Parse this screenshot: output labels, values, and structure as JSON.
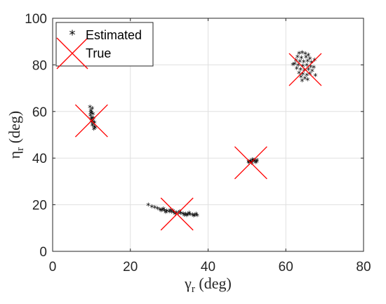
{
  "chart_data": {
    "type": "scatter",
    "xlabel": {
      "symbol": "γ",
      "subscript": "r",
      "unit": " (deg)"
    },
    "ylabel": {
      "symbol": "η",
      "subscript": "r",
      "unit": " (deg)"
    },
    "xlim": [
      0,
      80
    ],
    "ylim": [
      0,
      100
    ],
    "x_ticks": [
      0,
      20,
      40,
      60,
      80
    ],
    "y_ticks": [
      0,
      20,
      40,
      60,
      80,
      100
    ],
    "grid": true,
    "legend": {
      "position": "top-left",
      "entries": [
        "Estimated",
        "True"
      ]
    },
    "colors": {
      "estimated": "#000000",
      "true": "#ff0000",
      "grid": "#e0e0e0",
      "axis": "#262626"
    },
    "series": [
      {
        "name": "Estimated",
        "marker": "asterisk",
        "points": [
          [
            24.6,
            19.4
          ],
          [
            25.5,
            18.6
          ],
          [
            26.3,
            18.3
          ],
          [
            27.0,
            17.9
          ],
          [
            27.6,
            17.5
          ],
          [
            28.2,
            17.3
          ],
          [
            28.8,
            17.0
          ],
          [
            29.4,
            16.8
          ],
          [
            30.0,
            16.6
          ],
          [
            30.6,
            16.4
          ],
          [
            31.2,
            16.3
          ],
          [
            31.8,
            16.1
          ],
          [
            32.4,
            16.0
          ],
          [
            33.0,
            15.8
          ],
          [
            33.6,
            15.7
          ],
          [
            34.2,
            15.5
          ],
          [
            34.8,
            15.4
          ],
          [
            35.4,
            15.3
          ],
          [
            36.0,
            15.2
          ],
          [
            36.6,
            15.0
          ],
          [
            37.2,
            14.9
          ],
          [
            27.9,
            17.0
          ],
          [
            29.1,
            16.2
          ],
          [
            30.3,
            17.1
          ],
          [
            31.5,
            15.6
          ],
          [
            32.7,
            16.6
          ],
          [
            33.9,
            15.1
          ],
          [
            35.1,
            15.9
          ],
          [
            36.3,
            14.7
          ],
          [
            28.5,
            17.8
          ],
          [
            31.0,
            16.9
          ],
          [
            34.5,
            14.9
          ],
          [
            36.9,
            15.5
          ],
          [
            9.6,
            61.5
          ],
          [
            10.2,
            60.8
          ],
          [
            9.8,
            60.0
          ],
          [
            10.0,
            59.2
          ],
          [
            10.4,
            58.5
          ],
          [
            9.7,
            57.8
          ],
          [
            10.1,
            57.0
          ],
          [
            9.9,
            56.3
          ],
          [
            10.3,
            55.6
          ],
          [
            10.0,
            55.0
          ],
          [
            10.5,
            54.3
          ],
          [
            10.2,
            53.6
          ],
          [
            10.7,
            53.0
          ],
          [
            11.0,
            52.5
          ],
          [
            10.6,
            52.0
          ],
          [
            9.8,
            58.9
          ],
          [
            10.5,
            56.6
          ],
          [
            10.8,
            54.8
          ],
          [
            50.5,
            37.6
          ],
          [
            51.0,
            37.9
          ],
          [
            51.5,
            38.2
          ],
          [
            52.0,
            38.4
          ],
          [
            52.5,
            38.0
          ],
          [
            51.2,
            37.4
          ],
          [
            52.2,
            37.7
          ],
          [
            50.8,
            38.3
          ],
          [
            51.8,
            38.7
          ],
          [
            52.6,
            38.5
          ],
          [
            50.4,
            38.0
          ],
          [
            51.4,
            38.9
          ],
          [
            63.4,
            84.5
          ],
          [
            64.2,
            84.8
          ],
          [
            65.0,
            84.3
          ],
          [
            65.8,
            83.8
          ],
          [
            63.0,
            83.0
          ],
          [
            64.0,
            82.6
          ],
          [
            65.2,
            82.8
          ],
          [
            66.2,
            82.2
          ],
          [
            62.6,
            81.5
          ],
          [
            63.6,
            81.0
          ],
          [
            64.6,
            80.8
          ],
          [
            65.6,
            81.2
          ],
          [
            66.6,
            80.5
          ],
          [
            62.3,
            80.0
          ],
          [
            63.2,
            79.4
          ],
          [
            64.4,
            79.0
          ],
          [
            65.4,
            79.3
          ],
          [
            66.4,
            78.8
          ],
          [
            67.2,
            78.4
          ],
          [
            62.8,
            78.0
          ],
          [
            63.8,
            77.6
          ],
          [
            64.8,
            77.2
          ],
          [
            65.8,
            77.5
          ],
          [
            66.8,
            76.9
          ],
          [
            63.4,
            76.0
          ],
          [
            64.4,
            75.6
          ],
          [
            65.4,
            75.2
          ],
          [
            66.2,
            75.8
          ],
          [
            63.9,
            74.4
          ],
          [
            64.9,
            73.8
          ],
          [
            65.6,
            73.2
          ],
          [
            64.2,
            72.8
          ],
          [
            61.8,
            79.6
          ],
          [
            67.4,
            81.6
          ],
          [
            67.6,
            75.0
          ]
        ]
      },
      {
        "name": "True",
        "marker": "x",
        "points": [
          [
            32,
            16
          ],
          [
            10,
            56
          ],
          [
            51,
            38
          ],
          [
            65,
            78
          ]
        ]
      }
    ]
  }
}
